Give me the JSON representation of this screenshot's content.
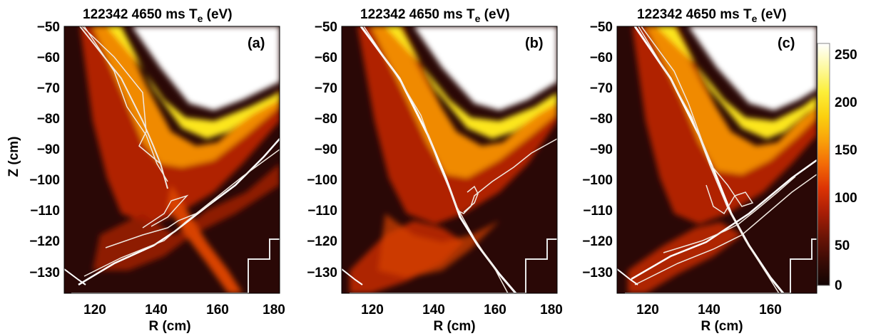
{
  "chart_data": [
    {
      "type": "heatmap",
      "title": "122342 4650 ms T",
      "title_sub": "e",
      "title_unit": " (eV)",
      "panel_label": "(a)",
      "xlabel": "R (cm)",
      "ylabel": "Z (cm)",
      "xlim": [
        110,
        180
      ],
      "ylim": [
        -137,
        -50
      ],
      "xticks": [
        120,
        140,
        160,
        180
      ],
      "yticks": [
        -50,
        -60,
        -70,
        -80,
        -90,
        -100,
        -110,
        -120,
        -130
      ]
    },
    {
      "type": "heatmap",
      "title": "122342 4650 ms T",
      "title_sub": "e",
      "title_unit": " (eV)",
      "panel_label": "(b)",
      "xlabel": "R (cm)",
      "ylabel": "",
      "xlim": [
        110,
        180
      ],
      "ylim": [
        -137,
        -50
      ],
      "xticks": [
        120,
        140,
        160,
        180
      ],
      "yticks": [
        -50,
        -60,
        -70,
        -80,
        -90,
        -100,
        -110,
        -120,
        -130
      ]
    },
    {
      "type": "heatmap",
      "title": "122342 4650 ms T",
      "title_sub": "e",
      "title_unit": " (eV)",
      "panel_label": "(c)",
      "xlabel": "R (cm)",
      "ylabel": "",
      "xlim": [
        110,
        175
      ],
      "ylim": [
        -137,
        -50
      ],
      "xticks": [
        120,
        140,
        160
      ],
      "yticks": [
        -50,
        -60,
        -70,
        -80,
        -90,
        -100,
        -110,
        -120,
        -130
      ]
    }
  ],
  "colorbar": {
    "range": [
      0,
      250
    ],
    "ticks": [
      0,
      50,
      100,
      150,
      200,
      250
    ],
    "colors": [
      "#120404",
      "#3a0b05",
      "#6b1406",
      "#a81e06",
      "#dc3304",
      "#f36a06",
      "#f9a20a",
      "#fbd10f",
      "#fcef3a",
      "#fdf9a0",
      "#ffffff"
    ]
  }
}
